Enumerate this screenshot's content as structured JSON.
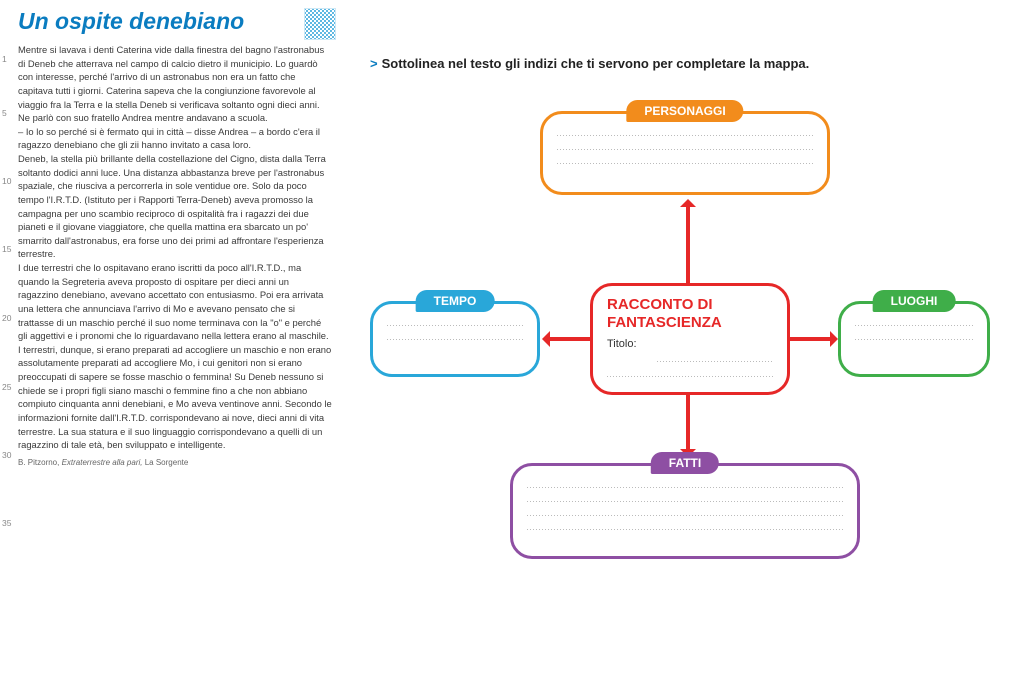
{
  "left": {
    "title": "Un ospite denebiano",
    "line_numbers": [
      "1",
      "5",
      "10",
      "15",
      "20",
      "25",
      "30",
      "35"
    ],
    "body": "Mentre si lavava i denti Caterina vide dalla finestra del bagno l'astronabus di Deneb che atterrava nel campo di calcio dietro il municipio. Lo guardò con interesse, perché l'arrivo di un astronabus non era un fatto che capitava tutti i giorni. Caterina sapeva che la congiunzione favorevole al viaggio fra la Terra e la stella Deneb si verificava soltanto ogni dieci anni. Ne parlò con suo fratello Andrea mentre andavano a scuola.\n– Io lo so perché si è fermato qui in città – disse Andrea – a bordo c'era il ragazzo denebiano che gli zii hanno invitato a casa loro.\nDeneb, la stella più brillante della costellazione del Cigno, dista dalla Terra soltanto dodici anni luce. Una distanza abbastanza breve per l'astronabus spaziale, che riusciva a percorrerla in sole ventidue ore. Solo da poco tempo l'I.R.T.D. (Istituto per i Rapporti Terra-Deneb) aveva promosso la campagna per uno scambio reciproco di ospitalità fra i ragazzi dei due pianeti e il giovane viaggiatore, che quella mattina era sbarcato un po' smarrito dall'astronabus, era forse uno dei primi ad affrontare l'esperienza terrestre.\nI due terrestri che lo ospitavano erano iscritti da poco all'I.R.T.D., ma quando la Segreteria aveva proposto di ospitare per dieci anni un ragazzino denebiano, avevano accettato con entusiasmo. Poi era arrivata una lettera che annunciava l'arrivo di Mo e avevano pensato che si trattasse di un maschio perché il suo nome terminava con la \"o\" e perché gli aggettivi e i pronomi che lo riguardavano nella lettera erano al maschile. I terrestri, dunque, si erano preparati ad accogliere un maschio e non erano assolutamente preparati ad accogliere Mo, i cui genitori non si erano preoccupati di sapere se fosse maschio o femmina! Su Deneb nessuno si chiede se i propri figli siano maschi o femmine fino a che non abbiano compiuto cinquanta anni denebiani, e Mo aveva ventinove anni. Secondo le informazioni fornite dall'I.R.T.D. corrispondevano ai nove, dieci anni di vita terrestre. La sua statura e il suo linguaggio corrispondevano a quelli di un ragazzino di tale età, ben sviluppato e intelligente.",
    "credit_author": "B. Pitzorno, ",
    "credit_title": "Extraterrestre alla pari, ",
    "credit_pub": "La Sorgente"
  },
  "right": {
    "instruction": "Sottolinea nel testo gli indizi che ti servono per completare la mappa.",
    "center_title": "RACCONTO DI FANTASCIENZA",
    "center_label": "Titolo:",
    "top_label": "PERSONAGGI",
    "left_label": "TEMPO",
    "right_label": "LUOGHI",
    "bottom_label": "FATTI"
  },
  "colors": {
    "title": "#0a7cc0",
    "arrow": "#e62828",
    "personaggi": "#f28c1c",
    "tempo": "#29a7d9",
    "luoghi": "#3fae49",
    "fatti": "#8e4fa3"
  }
}
